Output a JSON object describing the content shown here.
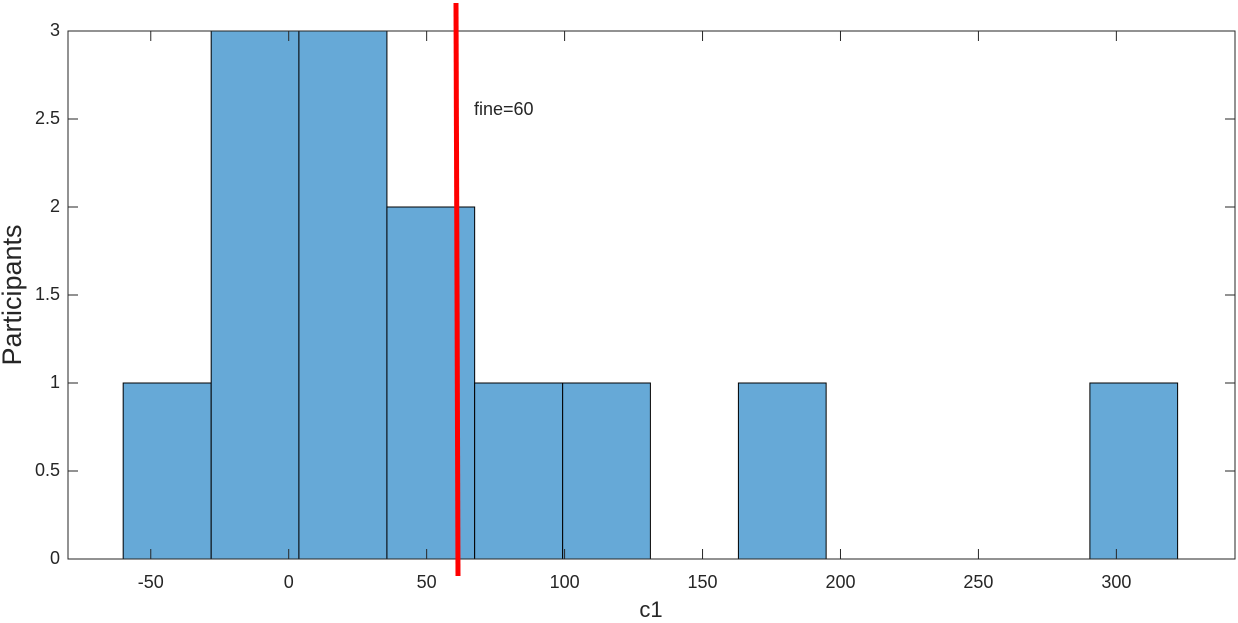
{
  "chart_data": {
    "type": "histogram",
    "xlabel": "c1",
    "ylabel": "Participants",
    "bins": [
      -60,
      -28.1,
      3.7,
      35.6,
      67.4,
      99.3,
      131.1,
      163,
      194.8,
      226.7,
      258.5,
      290.4,
      322.2
    ],
    "counts": [
      1,
      3,
      3,
      2,
      1,
      1,
      0,
      1,
      0,
      0,
      0,
      1
    ],
    "color": "#66a9d7",
    "edgecolor": "#000000",
    "xlim": [
      -80,
      343
    ],
    "ylim": [
      0,
      3
    ],
    "xticks": [
      -50,
      0,
      50,
      100,
      150,
      200,
      250,
      300
    ],
    "yticks": [
      0,
      0.5,
      1,
      1.5,
      2,
      2.5,
      3
    ],
    "vline": {
      "x": 61,
      "label": "fine=60",
      "color": "#ff0000"
    }
  }
}
